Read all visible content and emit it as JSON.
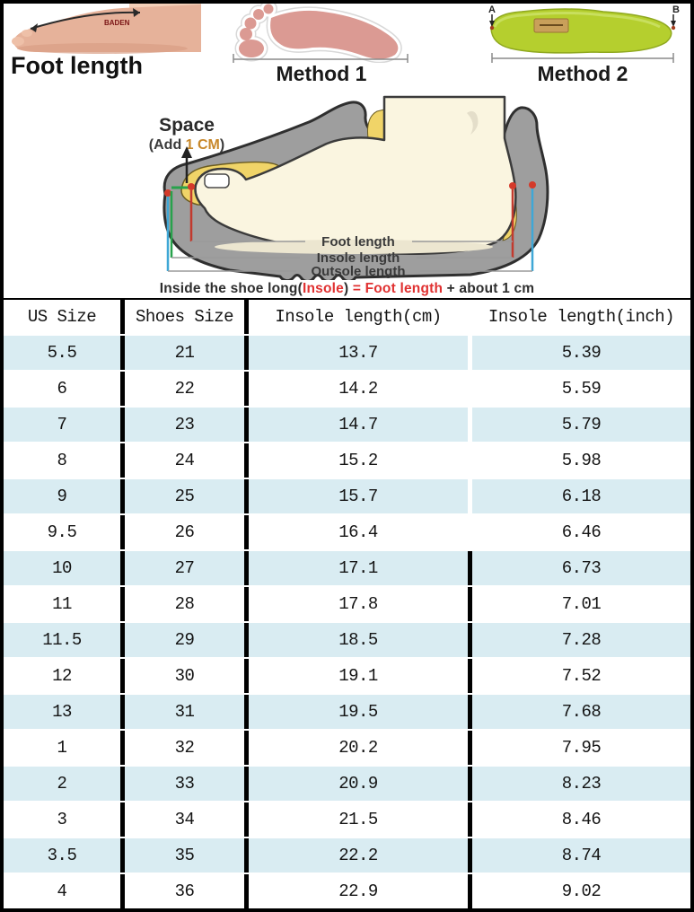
{
  "top": {
    "foot_photo_label": "Foot length",
    "foot_mark_text": "BADEN",
    "method1_label": "Method 1",
    "method2_label": "Method 2",
    "insole_point_a": "A",
    "insole_point_b": "B"
  },
  "diagram": {
    "space_label": "Space",
    "space_note_prefix": "(Add ",
    "space_note_value": "1 CM",
    "space_note_suffix": ")",
    "measure_foot": "Foot length",
    "measure_insole": "Insole length",
    "measure_outsole": "Outsole length",
    "caption": {
      "part1": "Inside the shoe long(",
      "insole": "Insole",
      "part2": ") ",
      "equals": "= ",
      "foot_length": "Foot length",
      "part3": " + about 1 cm"
    }
  },
  "colors": {
    "row_stripe": "#d9ecf2",
    "accent_red": "#e03131",
    "accent_orange": "#c8882a",
    "marker_green": "#28a24c",
    "marker_cyan": "#3fa7d6",
    "shoe_gray": "#9e9e9e",
    "insole_yellow": "#f0d468",
    "foot_cream": "#faf5e0",
    "insole_green": "#b5cf2e"
  },
  "table": {
    "headers": [
      "US Size",
      "Shoes Size",
      "Insole length(cm)",
      "Insole length(inch)"
    ],
    "rows": [
      [
        "5.5",
        "21",
        "13.7",
        "5.39"
      ],
      [
        "6",
        "22",
        "14.2",
        "5.59"
      ],
      [
        "7",
        "23",
        "14.7",
        "5.79"
      ],
      [
        "8",
        "24",
        "15.2",
        "5.98"
      ],
      [
        "9",
        "25",
        "15.7",
        "6.18"
      ],
      [
        "9.5",
        "26",
        "16.4",
        "6.46"
      ],
      [
        "10",
        "27",
        "17.1",
        "6.73"
      ],
      [
        "11",
        "28",
        "17.8",
        "7.01"
      ],
      [
        "11.5",
        "29",
        "18.5",
        "7.28"
      ],
      [
        "12",
        "30",
        "19.1",
        "7.52"
      ],
      [
        "13",
        "31",
        "19.5",
        "7.68"
      ],
      [
        "1",
        "32",
        "20.2",
        "7.95"
      ],
      [
        "2",
        "33",
        "20.9",
        "8.23"
      ],
      [
        "3",
        "34",
        "21.5",
        "8.46"
      ],
      [
        "3.5",
        "35",
        "22.2",
        "8.74"
      ],
      [
        "4",
        "36",
        "22.9",
        "9.02"
      ]
    ]
  }
}
